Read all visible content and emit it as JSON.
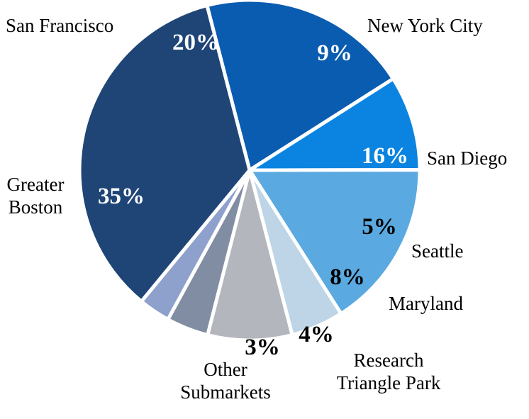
{
  "chart_data": {
    "type": "pie",
    "categories": [
      "San Francisco",
      "New York City",
      "San Diego",
      "Seattle",
      "Maryland",
      "Research Triangle Park",
      "Other Submarkets",
      "Greater Boston"
    ],
    "values": [
      20,
      9,
      16,
      5,
      8,
      4,
      3,
      35
    ],
    "value_labels": [
      "20%",
      "9%",
      "16%",
      "5%",
      "8%",
      "4%",
      "3%",
      "35%"
    ],
    "label_lines": [
      [
        "San Francisco"
      ],
      [
        "New York City"
      ],
      [
        "San Diego"
      ],
      [
        "Seattle"
      ],
      [
        "Maryland"
      ],
      [
        "Research",
        "Triangle Park"
      ],
      [
        "Other",
        "Submarkets"
      ],
      [
        "Greater",
        "Boston"
      ]
    ],
    "colors": [
      "#0a5cb0",
      "#0a84e0",
      "#5aa9e0",
      "#bdd5e6",
      "#b4b6bd",
      "#808da3",
      "#8ea0cc",
      "#1f4577"
    ],
    "value_label_colors": [
      "#ffffff",
      "#ffffff",
      "#ffffff",
      "#000000",
      "#000000",
      "#000000",
      "#000000",
      "#ffffff"
    ],
    "start_angle_deg": -14.5,
    "direction": "clockwise",
    "legend": "none"
  }
}
